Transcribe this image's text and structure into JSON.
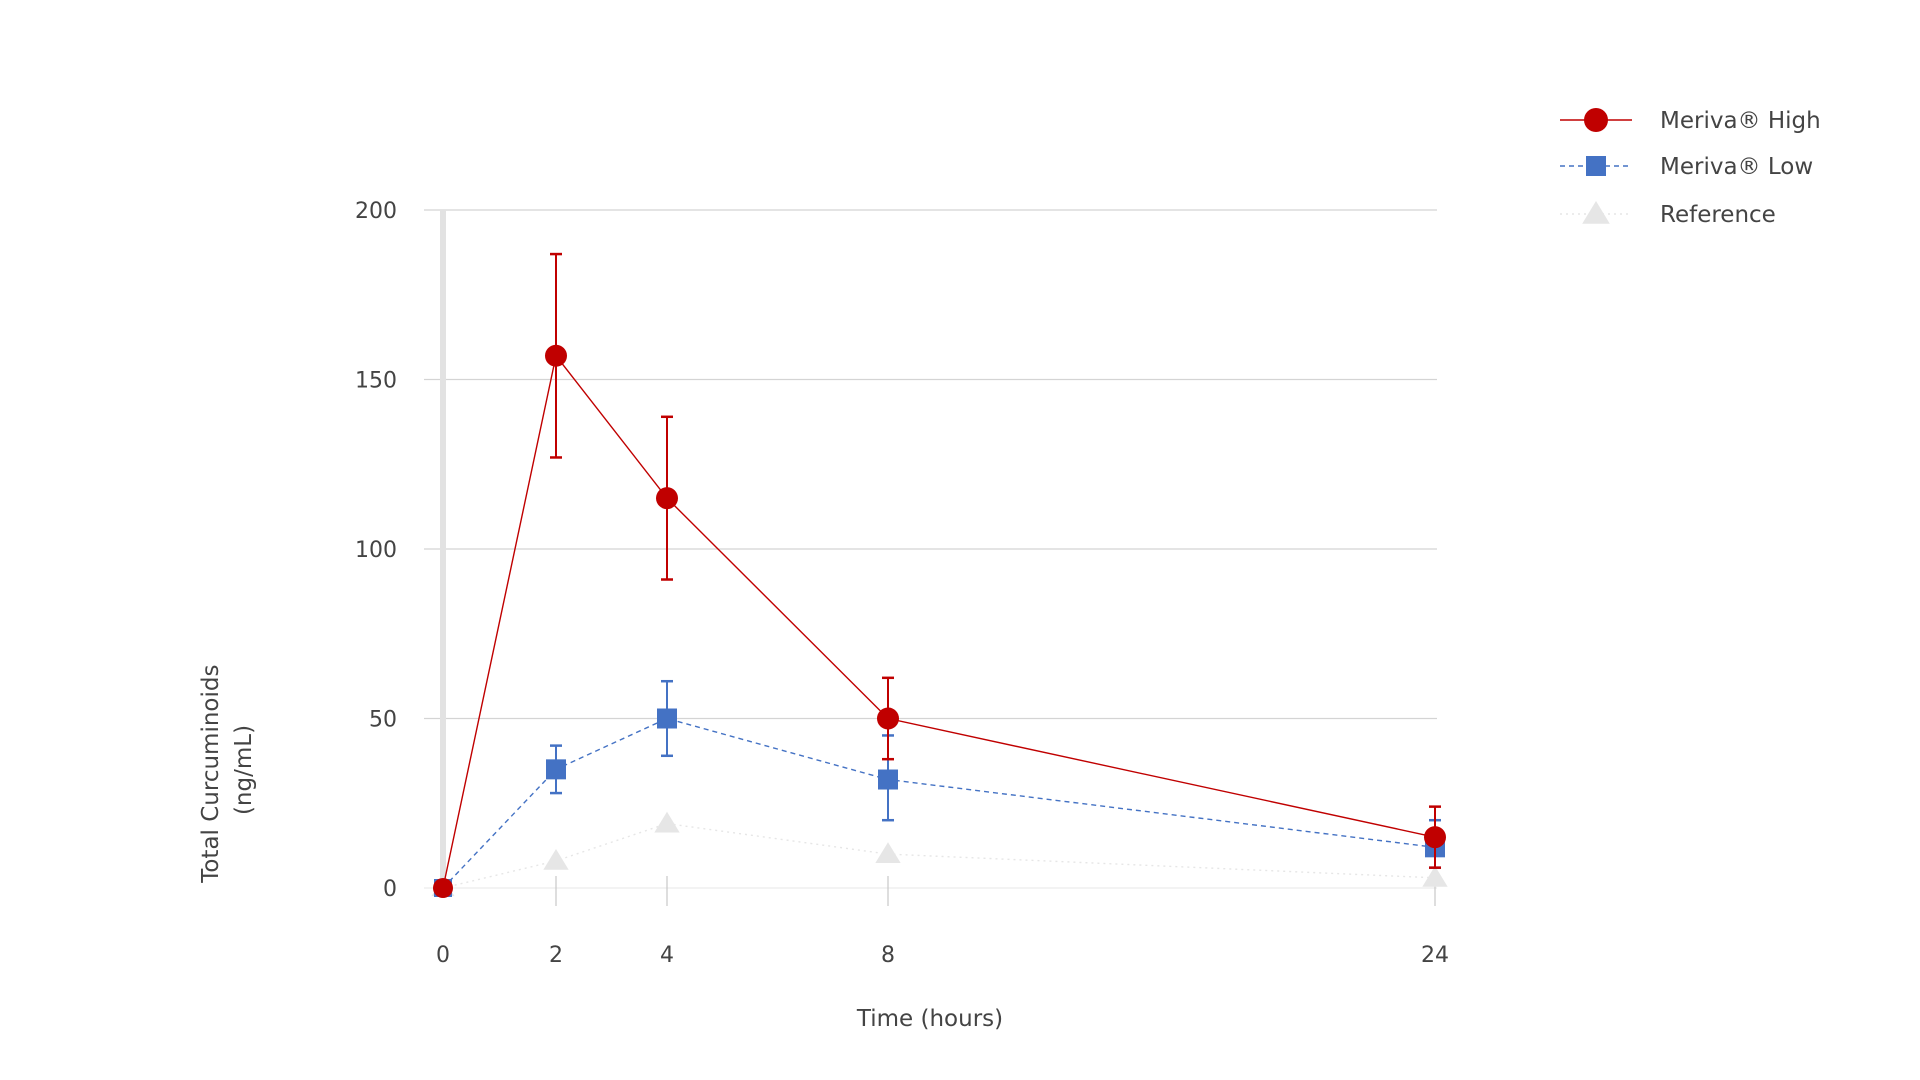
{
  "chart_data": {
    "type": "line",
    "title": "",
    "xlabel": "Time (hours)",
    "ylabel_lines": [
      "Total Curcuminoids",
      "(ng/mL)"
    ],
    "x_categories": [
      "0",
      "2",
      "4",
      "8",
      "24"
    ],
    "ylim": [
      0,
      200
    ],
    "y_ticks": [
      0,
      50,
      100,
      150,
      200
    ],
    "y_tick_labels": [
      "0",
      "50",
      "100",
      "150",
      "200"
    ],
    "legend_position": "top-right",
    "series": [
      {
        "name": "Meriva® High",
        "marker": "circle",
        "line_style": "solid",
        "color": "#c00000",
        "values": [
          0,
          157,
          115,
          50,
          15
        ],
        "err_upper": [
          0,
          187,
          139,
          62,
          24
        ],
        "err_lower": [
          0,
          127,
          91,
          38,
          6
        ]
      },
      {
        "name": "Meriva® Low",
        "marker": "square",
        "line_style": "dashed",
        "color": "#4472c4",
        "values": [
          0,
          35,
          50,
          32,
          12
        ],
        "err_upper": [
          0,
          42,
          61,
          45,
          20
        ],
        "err_lower": [
          0,
          28,
          39,
          20,
          6
        ]
      },
      {
        "name": "Reference",
        "marker": "triangle",
        "line_style": "dotted",
        "color": "#e6e6e6",
        "values": [
          0,
          8,
          19,
          10,
          3
        ],
        "err_upper": null,
        "err_lower": null
      }
    ]
  }
}
